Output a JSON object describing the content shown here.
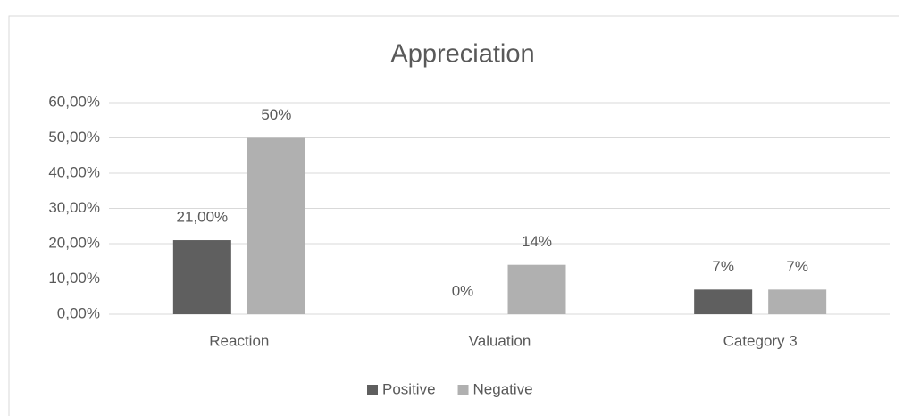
{
  "chart_data": {
    "type": "bar",
    "title": "Appreciation",
    "categories": [
      "Reaction",
      "Valuation",
      "Category 3"
    ],
    "series": [
      {
        "name": "Positive",
        "color": "#5f5f5f",
        "values": [
          21,
          0,
          7
        ],
        "value_labels": [
          "21,00%",
          "0%",
          "7%"
        ]
      },
      {
        "name": "Negative",
        "color": "#b0b0b0",
        "values": [
          50,
          14,
          7
        ],
        "value_labels": [
          "50%",
          "14%",
          "7%"
        ]
      }
    ],
    "ylim": [
      0,
      60
    ],
    "yticks": [
      {
        "value": 0,
        "label": "0,00%"
      },
      {
        "value": 10,
        "label": "10,00%"
      },
      {
        "value": 20,
        "label": "20,00%"
      },
      {
        "value": 30,
        "label": "30,00%"
      },
      {
        "value": 40,
        "label": "40,00%"
      },
      {
        "value": 50,
        "label": "50,00%"
      },
      {
        "value": 60,
        "label": "60,00%"
      }
    ],
    "grid": true,
    "legend": "bottom"
  }
}
